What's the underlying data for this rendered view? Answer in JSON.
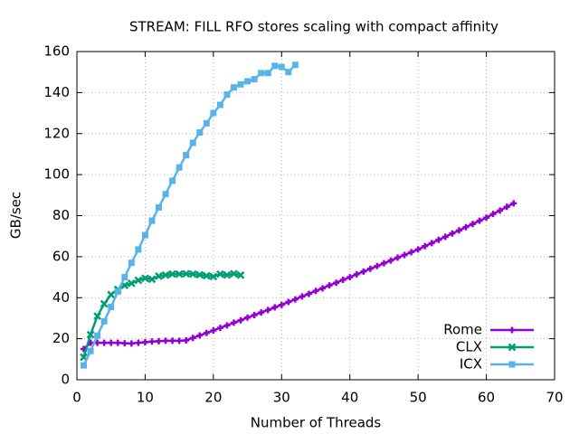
{
  "chart_data": {
    "type": "line",
    "title": "STREAM: FILL RFO stores scaling with compact affinity",
    "x_label": "Number of Threads",
    "y_label": "GB/sec",
    "xlim": [
      0,
      70
    ],
    "xticks": [
      0,
      10,
      20,
      30,
      40,
      50,
      60,
      70
    ],
    "ylim": [
      0,
      160
    ],
    "yticks": [
      0,
      20,
      40,
      60,
      80,
      100,
      120,
      140,
      160
    ],
    "grid": true,
    "legend": "bottom-right",
    "series": [
      {
        "name": "Rome",
        "color": "#9400d3",
        "marker": "plus",
        "x": [
          1,
          2,
          3,
          4,
          5,
          6,
          7,
          8,
          9,
          10,
          11,
          12,
          13,
          14,
          15,
          16,
          17,
          18,
          19,
          20,
          21,
          22,
          23,
          24,
          25,
          26,
          27,
          28,
          29,
          30,
          31,
          32,
          33,
          34,
          35,
          36,
          37,
          38,
          39,
          40,
          41,
          42,
          43,
          44,
          45,
          46,
          47,
          48,
          49,
          50,
          51,
          52,
          53,
          54,
          55,
          56,
          57,
          58,
          59,
          60,
          61,
          62,
          63,
          64
        ],
        "values": [
          15,
          18,
          18,
          18,
          18,
          18,
          17.8,
          17.7,
          18,
          18.3,
          18.6,
          18.8,
          19,
          19,
          19,
          19.2,
          20.4,
          21.6,
          22.8,
          24,
          25.3,
          26.5,
          27.8,
          29,
          30.3,
          31.5,
          32.8,
          34,
          35.3,
          36.5,
          37.9,
          39.2,
          40.6,
          41.9,
          43.3,
          44.6,
          46,
          47.3,
          48.7,
          50,
          51.4,
          52.7,
          54.1,
          55.4,
          56.8,
          58.1,
          59.5,
          60.8,
          62.2,
          63.5,
          65.1,
          66.6,
          68.2,
          69.7,
          71.3,
          72.8,
          74.4,
          75.9,
          77.5,
          79,
          80.8,
          82.5,
          84.3,
          86
        ]
      },
      {
        "name": "CLX",
        "color": "#009e73",
        "marker": "cross",
        "x": [
          1,
          2,
          3,
          4,
          5,
          6,
          7,
          8,
          9,
          10,
          11,
          12,
          13,
          14,
          15,
          16,
          17,
          18,
          19,
          20,
          21,
          22,
          23,
          24
        ],
        "values": [
          11,
          22,
          31,
          37,
          41.5,
          44,
          46,
          47,
          48.5,
          49.5,
          49,
          50.5,
          51,
          51.5,
          51.5,
          51.7,
          51.5,
          51.2,
          50.7,
          50.3,
          51.5,
          51,
          51.7,
          51
        ]
      },
      {
        "name": "ICX",
        "color": "#56b4e9",
        "marker": "square",
        "x": [
          1,
          2,
          3,
          4,
          5,
          6,
          7,
          8,
          9,
          10,
          11,
          12,
          13,
          14,
          15,
          16,
          17,
          18,
          19,
          20,
          21,
          22,
          23,
          24,
          25,
          26,
          27,
          28,
          29,
          30,
          31,
          32
        ],
        "values": [
          7,
          14,
          21.5,
          28.5,
          35.5,
          43,
          50,
          57,
          63.5,
          70.5,
          77.5,
          84,
          90.5,
          97,
          103.5,
          109.5,
          115.5,
          120.5,
          125,
          130,
          134,
          139,
          142.5,
          144,
          145.5,
          146.5,
          149.5,
          149.5,
          153,
          152.5,
          150,
          153.5
        ]
      }
    ]
  }
}
